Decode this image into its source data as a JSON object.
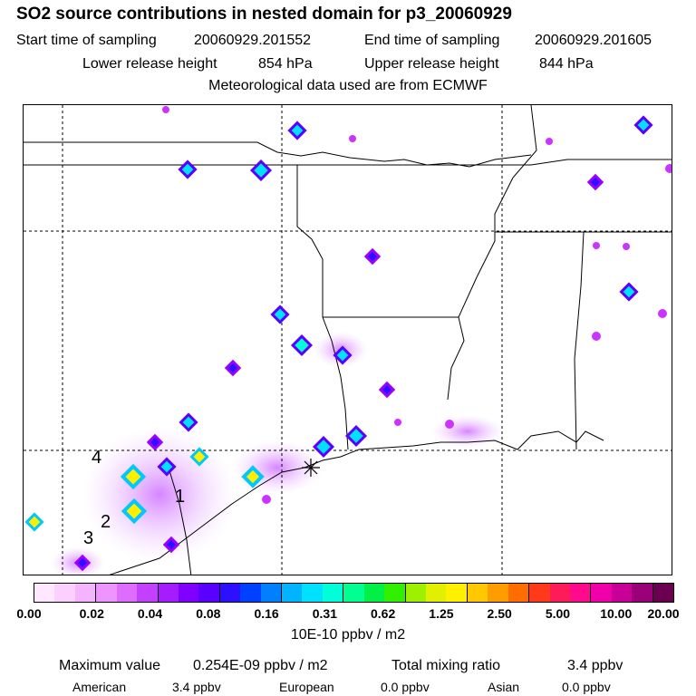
{
  "header": {
    "title": "SO2 source contributions in nested domain for p3_20060929",
    "start_label": "Start time of sampling",
    "start_value": "20060929.201552",
    "end_label": "End time of sampling",
    "end_value": "20060929.201605",
    "lower_label": "Lower release height",
    "lower_value": "854 hPa",
    "upper_label": "Upper release height",
    "upper_value": "844 hPa",
    "met": "Meteorological data used are from ECMWF"
  },
  "map": {
    "site_labels": [
      "4",
      "1",
      "2",
      "3"
    ],
    "source_colors": {
      "weak": "#cc66ff",
      "low": "#9900ff",
      "mid": "#00e5ff",
      "high": "#ffee00"
    }
  },
  "legend": {
    "colors": [
      "#ffe8ff",
      "#fbd0ff",
      "#f4b4ff",
      "#ec94ff",
      "#dd6cff",
      "#c440ff",
      "#a41cff",
      "#8000ff",
      "#5a00ff",
      "#2c10ff",
      "#0040ff",
      "#0080ff",
      "#00b4ff",
      "#00e0ff",
      "#00ffd8",
      "#00ff90",
      "#00f048",
      "#30f000",
      "#9cf000",
      "#e0f000",
      "#fff000",
      "#ffc800",
      "#ff9c00",
      "#ff6c00",
      "#ff3a1a",
      "#ff1a5a",
      "#ff0a8c",
      "#f000a8",
      "#c80098",
      "#9a0078",
      "#6c0050"
    ],
    "ticks": [
      "0.00",
      "0.02",
      "0.04",
      "0.08",
      "0.16",
      "0.31",
      "0.62",
      "1.25",
      "2.50",
      "5.00",
      "10.00",
      "20.00"
    ],
    "units": "10E-10 ppbv / m2"
  },
  "stats": {
    "max_label": "Maximum value",
    "max_value": "0.254E-09 ppbv / m2",
    "total_label": "Total mixing ratio",
    "total_value": "3.4 ppbv",
    "american_label": "American",
    "american_value": "3.4 ppbv",
    "european_label": "European",
    "european_value": "0.0 ppbv",
    "asian_label": "Asian",
    "asian_value": "0.0 ppbv"
  }
}
